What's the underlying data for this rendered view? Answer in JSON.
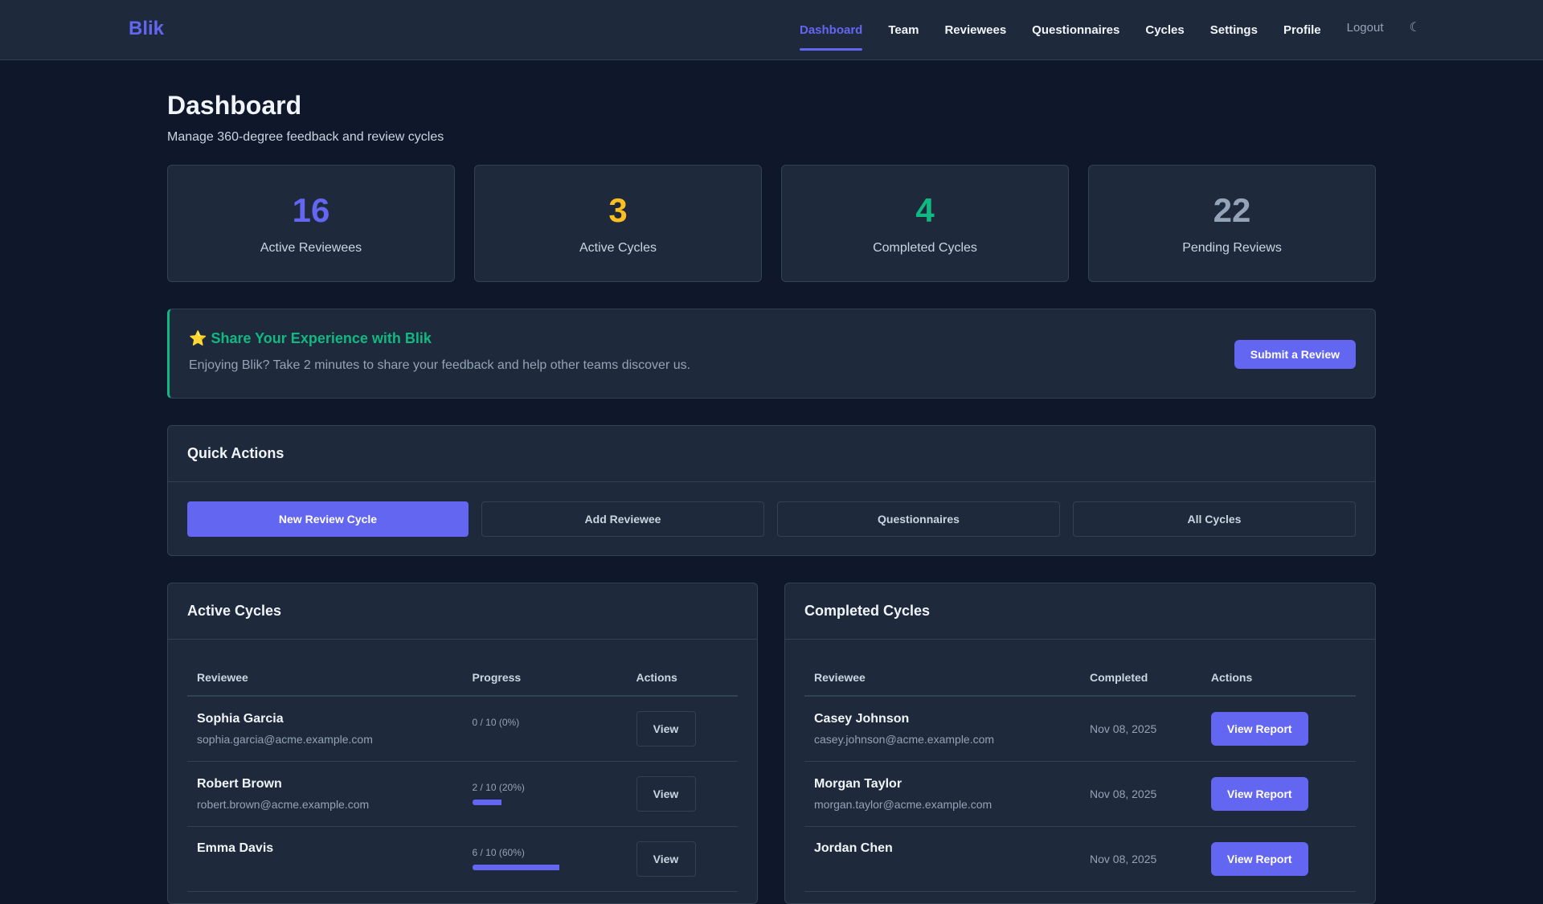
{
  "nav": {
    "logo": "Blik",
    "items": [
      {
        "label": "Dashboard",
        "active": true
      },
      {
        "label": "Team"
      },
      {
        "label": "Reviewees"
      },
      {
        "label": "Questionnaires"
      },
      {
        "label": "Cycles"
      },
      {
        "label": "Settings"
      },
      {
        "label": "Profile"
      }
    ],
    "logout": "Logout",
    "theme_icon": "moon-icon"
  },
  "header": {
    "title": "Dashboard",
    "subtitle": "Manage 360-degree feedback and review cycles"
  },
  "stats": [
    {
      "value": "16",
      "label": "Active Reviewees",
      "color": "#6366f1"
    },
    {
      "value": "3",
      "label": "Active Cycles",
      "color": "#fbbf24"
    },
    {
      "value": "4",
      "label": "Completed Cycles",
      "color": "#10b981"
    },
    {
      "value": "22",
      "label": "Pending Reviews",
      "color": "#94a3b8"
    }
  ],
  "banner": {
    "icon": "⭐",
    "title": "Share Your Experience with Blik",
    "text": "Enjoying Blik? Take 2 minutes to share your feedback and help other teams discover us.",
    "button": "Submit a Review"
  },
  "quick_actions": {
    "title": "Quick Actions",
    "buttons": [
      "New Review Cycle",
      "Add Reviewee",
      "Questionnaires",
      "All Cycles"
    ]
  },
  "active_cycles": {
    "title": "Active Cycles",
    "columns": [
      "Reviewee",
      "Progress",
      "Actions"
    ],
    "rows": [
      {
        "name": "Sophia Garcia",
        "email": "sophia.garcia@acme.example.com",
        "progress": "0 / 10 (0%)",
        "percent": 0,
        "action": "View"
      },
      {
        "name": "Robert Brown",
        "email": "robert.brown@acme.example.com",
        "progress": "2 / 10 (20%)",
        "percent": 20,
        "action": "View"
      },
      {
        "name": "Emma Davis",
        "email": "",
        "progress": "6 / 10 (60%)",
        "percent": 60,
        "action": "View"
      }
    ]
  },
  "completed_cycles": {
    "title": "Completed Cycles",
    "columns": [
      "Reviewee",
      "Completed",
      "Actions"
    ],
    "rows": [
      {
        "name": "Casey Johnson",
        "email": "casey.johnson@acme.example.com",
        "date": "Nov 08, 2025",
        "action": "View Report"
      },
      {
        "name": "Morgan Taylor",
        "email": "morgan.taylor@acme.example.com",
        "date": "Nov 08, 2025",
        "action": "View Report"
      },
      {
        "name": "Jordan Chen",
        "email": "",
        "date": "Nov 08, 2025",
        "action": "View Report"
      }
    ]
  }
}
